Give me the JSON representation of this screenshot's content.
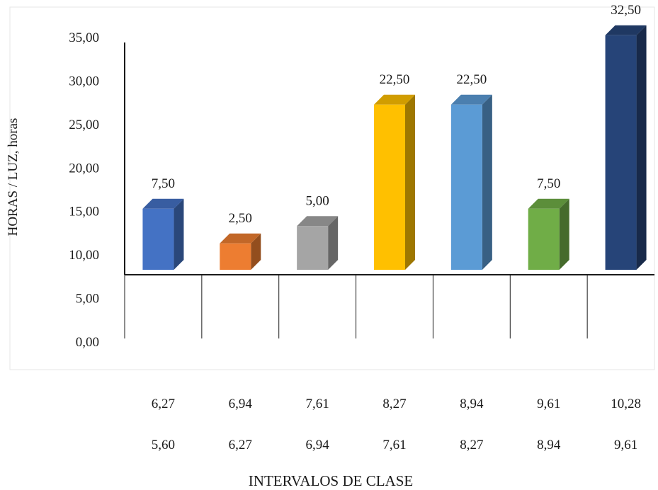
{
  "chart_data": {
    "type": "bar",
    "style": "3d-column",
    "ylabel": "HORAS / LUZ, horas",
    "xlabel": "INTERVALOS DE CLASE",
    "y_ticks": [
      "35,00",
      "30,00",
      "25,00",
      "20,00",
      "15,00",
      "10,00",
      "5,00",
      "0,00"
    ],
    "ylim": [
      0,
      35
    ],
    "grid": false,
    "categories_upper": [
      "6,27",
      "6,94",
      "7,61",
      "8,27",
      "8,94",
      "9,61",
      "10,28"
    ],
    "categories_lower": [
      "5,60",
      "6,27",
      "6,94",
      "7,61",
      "8,27",
      "8,94",
      "9,61"
    ],
    "values": [
      7.5,
      2.5,
      5.0,
      22.5,
      22.5,
      7.5,
      32.5
    ],
    "data_labels": [
      "7,50",
      "2,50",
      "5,00",
      "22,50",
      "22,50",
      "7,50",
      "32,50"
    ],
    "colors": [
      "#4472C4",
      "#ED7D31",
      "#A5A5A5",
      "#FFC000",
      "#5B9BD5",
      "#70AD47",
      "#264478"
    ]
  }
}
